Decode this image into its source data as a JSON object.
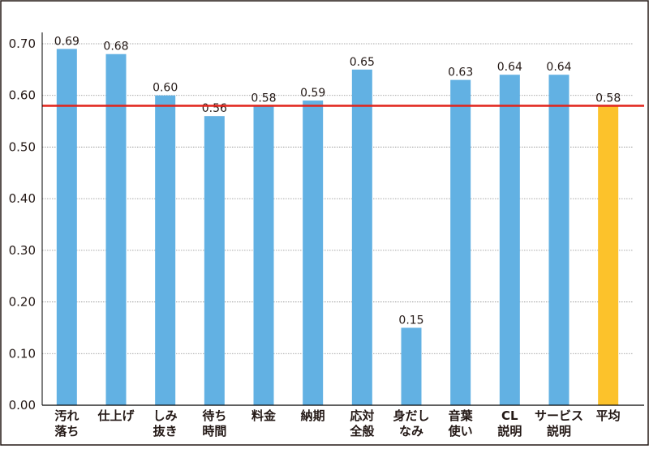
{
  "chart_data": {
    "type": "bar",
    "title": "",
    "xlabel": "",
    "ylabel": "",
    "categories": [
      [
        "汚れ",
        "落ち"
      ],
      [
        "仕上げ"
      ],
      [
        "しみ",
        "抜き"
      ],
      [
        "待ち",
        "時間"
      ],
      [
        "料金"
      ],
      [
        "納期"
      ],
      [
        "応対",
        "全般"
      ],
      [
        "身だし",
        "なみ"
      ],
      [
        "音葉",
        "使い"
      ],
      [
        "CL",
        "説明"
      ],
      [
        "サービス",
        "説明"
      ],
      [
        "平均"
      ]
    ],
    "values": [
      0.69,
      0.68,
      0.6,
      0.56,
      0.58,
      0.59,
      0.65,
      0.15,
      0.63,
      0.64,
      0.64,
      0.58
    ],
    "value_labels": [
      "0.69",
      "0.68",
      "0.60",
      "0.56",
      "0.58",
      "0.59",
      "0.65",
      "0.15",
      "0.63",
      "0.64",
      "0.64",
      "0.58"
    ],
    "highlight_index": 11,
    "reference_line": 0.58,
    "ylim": [
      0,
      0.7
    ],
    "yticks": [
      "0.00",
      "0.10",
      "0.20",
      "0.30",
      "0.40",
      "0.50",
      "0.60",
      "0.70"
    ],
    "grid": true,
    "colors": {
      "bar": "#62b1e3",
      "highlight": "#fcc22b",
      "reference_line": "#e2231a",
      "grid": "#8c8c8c",
      "axis": "#000000",
      "text": "#231815"
    }
  }
}
